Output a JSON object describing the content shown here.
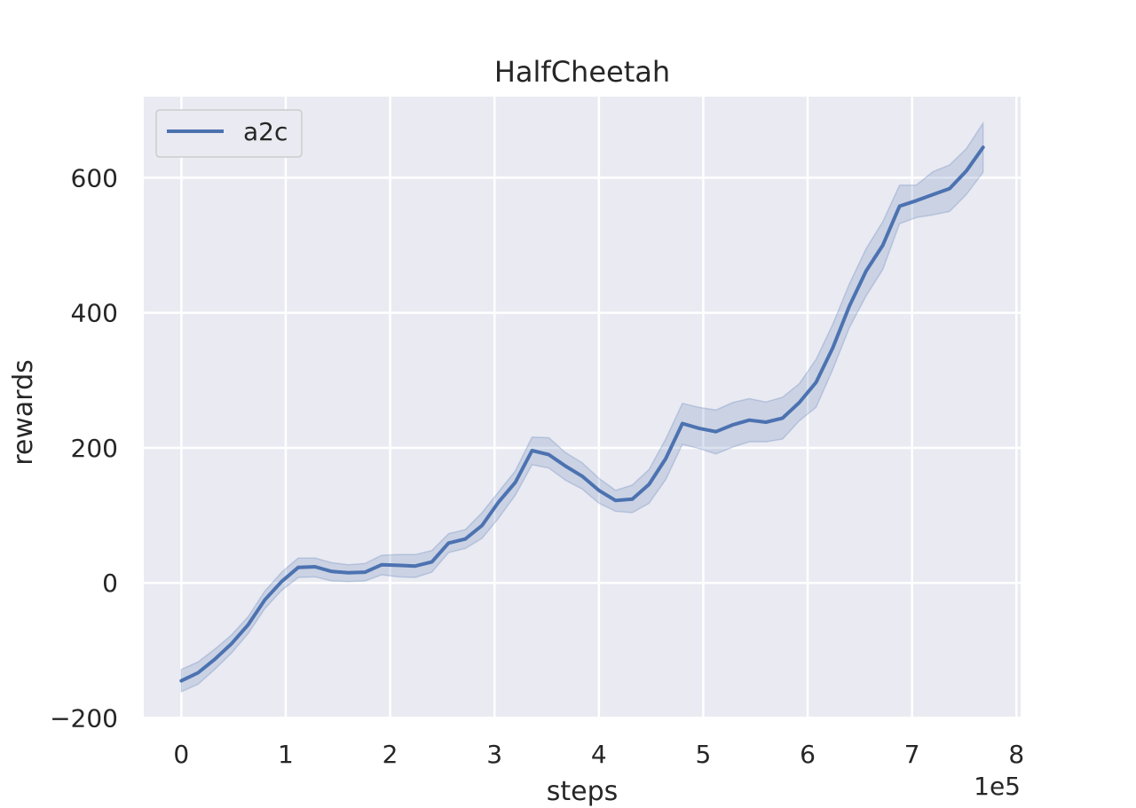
{
  "chart_data": {
    "type": "line",
    "title": "HalfCheetah",
    "xlabel": "steps",
    "ylabel": "rewards",
    "x_offset_label": "1e5",
    "x_tick_labels": [
      "0",
      "1",
      "2",
      "3",
      "4",
      "5",
      "6",
      "7",
      "8"
    ],
    "x_ticks": [
      0,
      1,
      2,
      3,
      4,
      5,
      6,
      7,
      8
    ],
    "y_tick_labels": [
      "−200",
      "0",
      "200",
      "400",
      "600"
    ],
    "y_ticks": [
      -200,
      0,
      200,
      400,
      600
    ],
    "xlim": [
      -0.36,
      8.04
    ],
    "ylim": [
      -198,
      720
    ],
    "grid": true,
    "legend_position": "upper left",
    "series": [
      {
        "name": "a2c",
        "color": "#4c72b0",
        "band_color": "#4c72b0",
        "x": [
          0.0,
          0.16,
          0.32,
          0.48,
          0.64,
          0.8,
          0.96,
          1.12,
          1.28,
          1.44,
          1.6,
          1.76,
          1.92,
          2.08,
          2.24,
          2.4,
          2.56,
          2.72,
          2.88,
          3.04,
          3.2,
          3.36,
          3.52,
          3.68,
          3.84,
          4.0,
          4.16,
          4.32,
          4.48,
          4.64,
          4.8,
          4.96,
          5.12,
          5.28,
          5.44,
          5.6,
          5.76,
          5.92,
          6.08,
          6.24,
          6.4,
          6.56,
          6.72,
          6.88,
          7.04,
          7.2,
          7.36,
          7.52,
          7.68
        ],
        "mean": [
          -145,
          -133,
          -113,
          -90,
          -62,
          -25,
          2,
          23,
          24,
          17,
          15,
          16,
          27,
          26,
          25,
          31,
          59,
          65,
          85,
          120,
          149,
          196,
          190,
          173,
          158,
          137,
          122,
          124,
          146,
          184,
          236,
          229,
          224,
          234,
          241,
          238,
          244,
          267,
          297,
          348,
          410,
          462,
          500,
          558,
          566,
          575,
          584,
          610,
          645
        ],
        "upper": [
          -128,
          -117,
          -98,
          -77,
          -50,
          -12,
          16,
          37,
          37,
          30,
          27,
          29,
          41,
          42,
          42,
          48,
          73,
          79,
          104,
          135,
          166,
          216,
          215,
          193,
          178,
          155,
          137,
          145,
          168,
          213,
          266,
          260,
          256,
          267,
          273,
          268,
          275,
          295,
          331,
          383,
          443,
          495,
          535,
          589,
          589,
          609,
          619,
          643,
          681
        ],
        "lower": [
          -161,
          -150,
          -128,
          -104,
          -75,
          -38,
          -11,
          8,
          9,
          3,
          2,
          3,
          12,
          9,
          8,
          16,
          45,
          51,
          66,
          96,
          130,
          175,
          170,
          152,
          139,
          118,
          106,
          104,
          118,
          153,
          205,
          199,
          191,
          201,
          209,
          209,
          213,
          240,
          260,
          316,
          378,
          425,
          464,
          532,
          541,
          545,
          550,
          575,
          608
        ]
      }
    ]
  }
}
